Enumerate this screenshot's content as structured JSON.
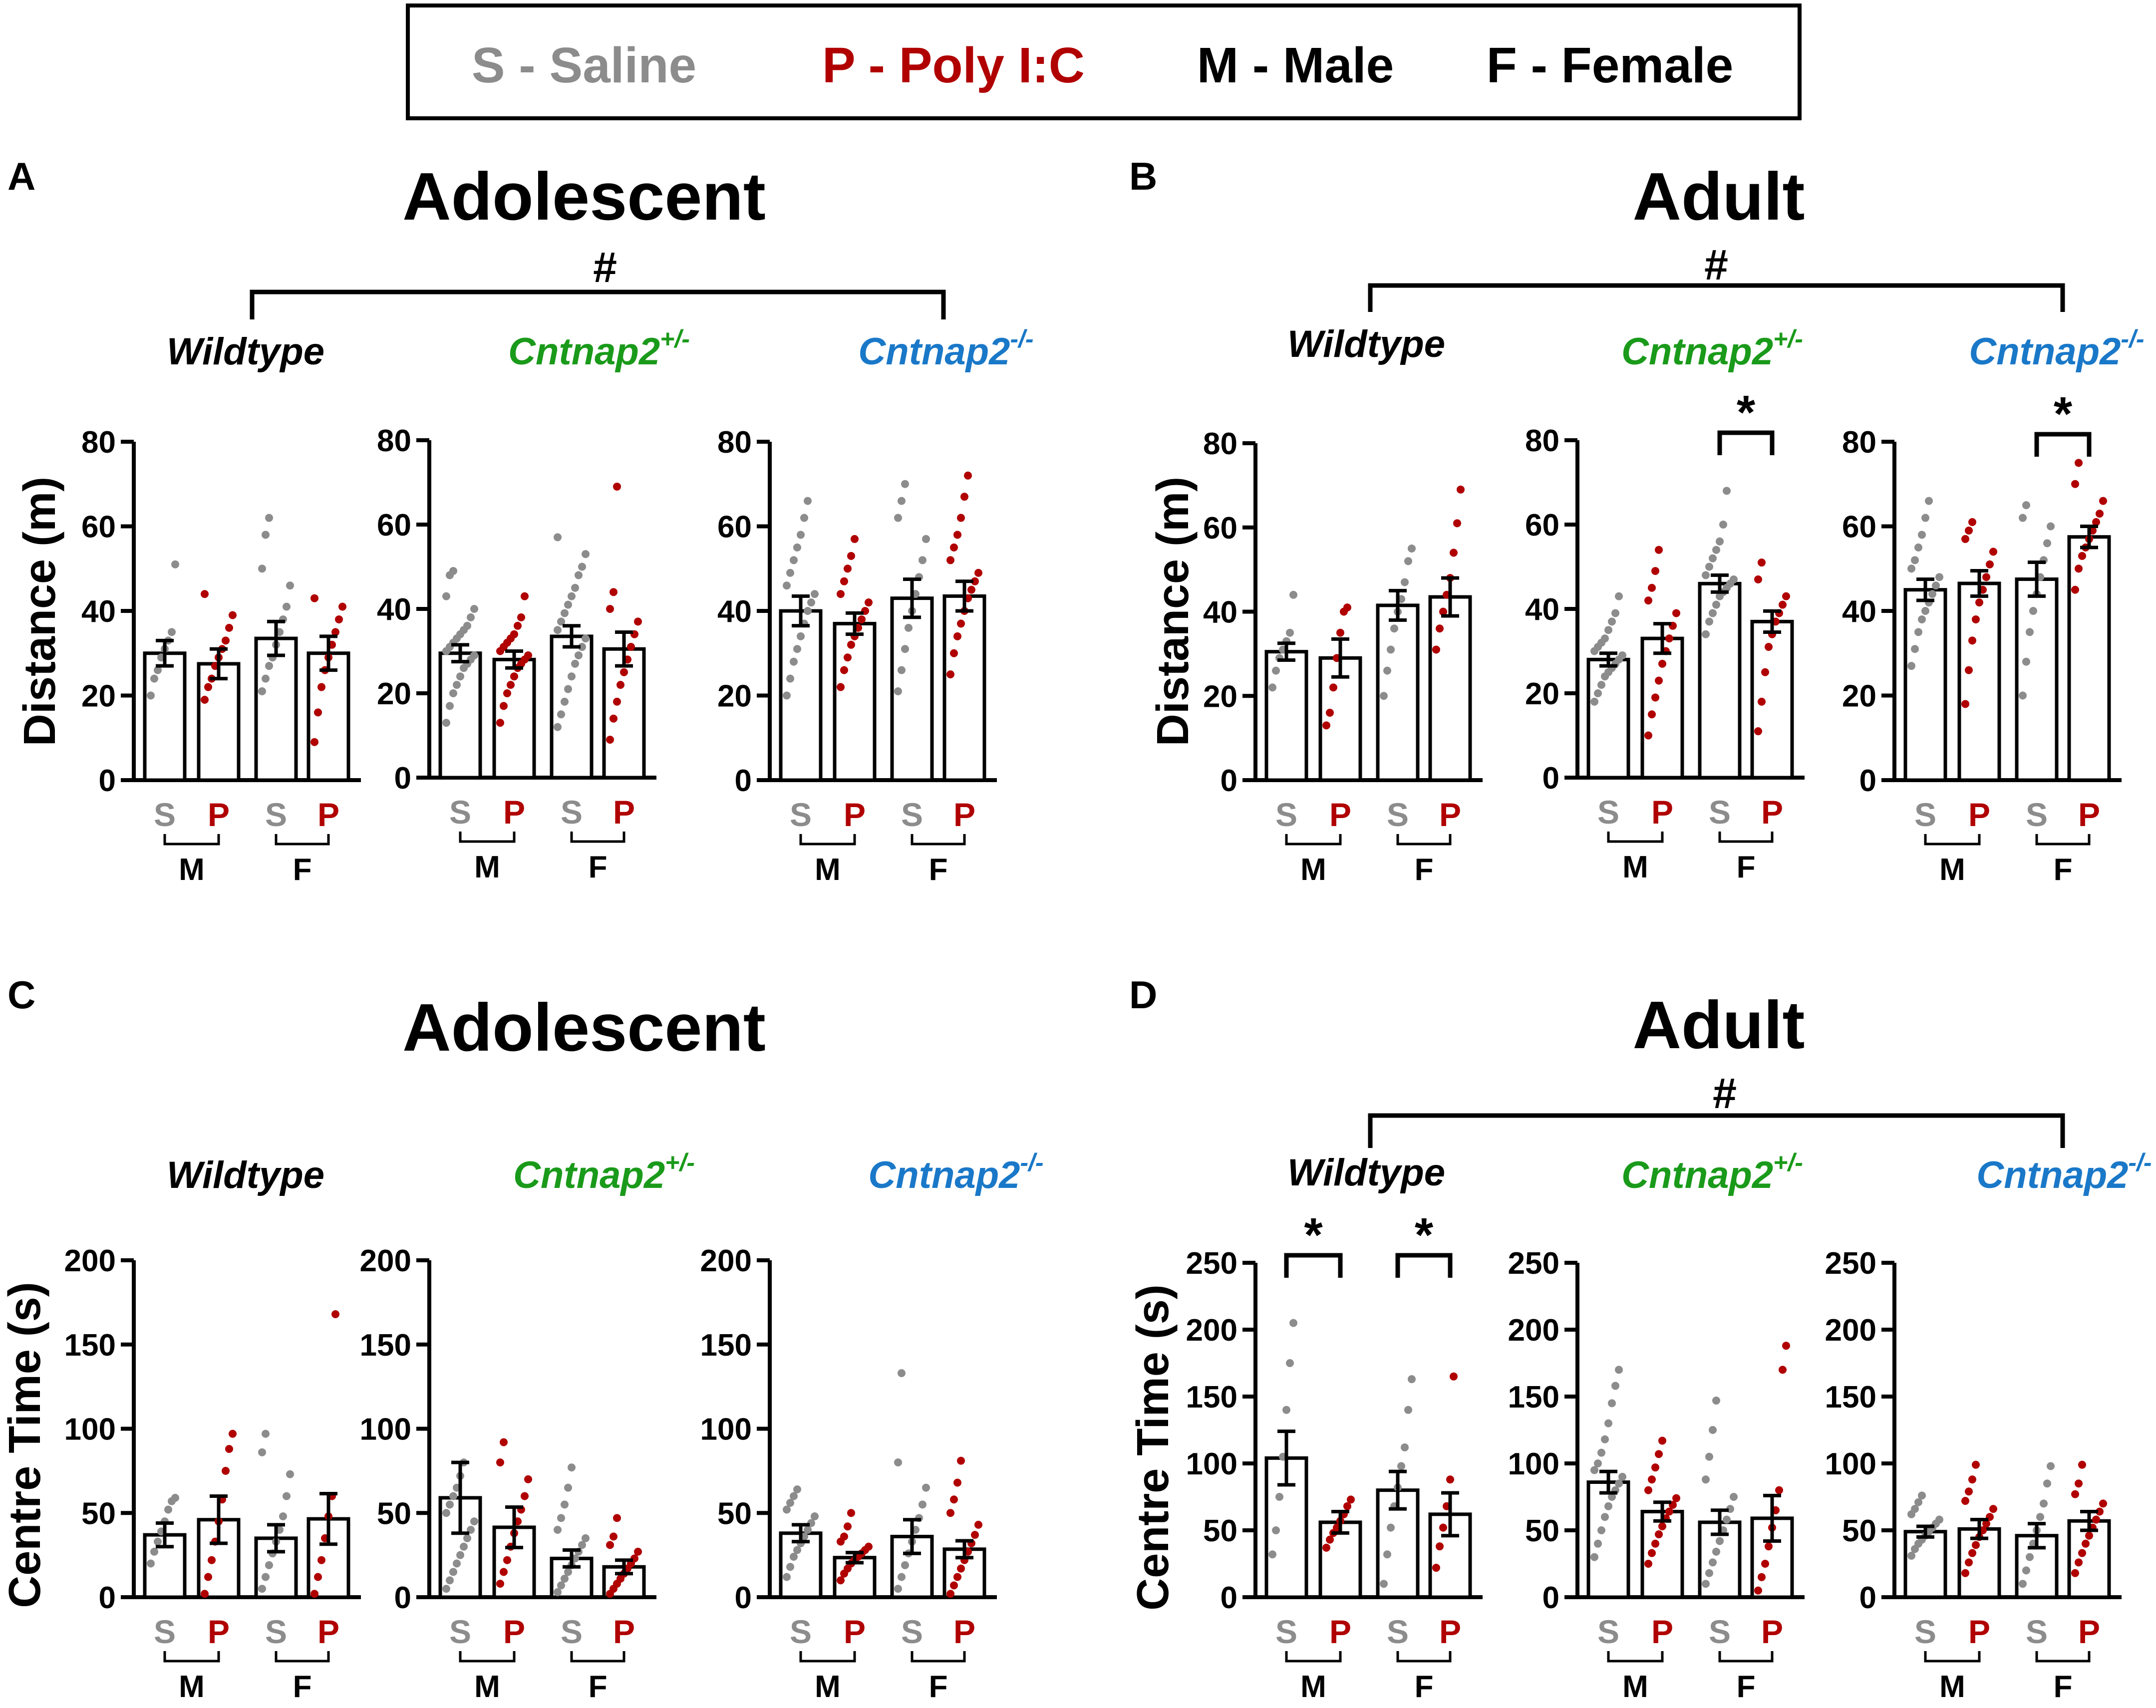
{
  "legend": {
    "items": [
      {
        "text": "S - Saline",
        "color": "#8c8c8c"
      },
      {
        "text": "P - Poly I:C",
        "color": "#b00000"
      },
      {
        "text": "M - Male",
        "color": "#000000"
      },
      {
        "text": "F - Female",
        "color": "#000000"
      }
    ]
  },
  "colors": {
    "saline": "#8c8c8c",
    "poly": "#b00000",
    "wildtype": "#000000",
    "het": "#1a9a1a",
    "ko": "#1a78c8"
  },
  "panels": [
    {
      "letter": "A",
      "title": "Adolescent",
      "hash": "#"
    },
    {
      "letter": "B",
      "title": "Adult",
      "hash": "#"
    },
    {
      "letter": "C",
      "title": "Adolescent",
      "hash": ""
    },
    {
      "letter": "D",
      "title": "Adult",
      "hash": "#"
    }
  ],
  "genotype_labels": {
    "wt": "Wildtype",
    "het_base": "Cntnap2",
    "het_sup": "+/-",
    "ko_base": "Cntnap2",
    "ko_sup": "-/-"
  },
  "axis_labels": {
    "A": "Distance (m)",
    "B": "Distance (m)",
    "C": "Centre Time (s)",
    "D": "Centre Time (s)"
  },
  "group_labels": {
    "S": "S",
    "P": "P",
    "M": "M",
    "F": "F"
  },
  "significance_mark": "*",
  "chart_data": [
    {
      "panel": "A",
      "genotype": "Wildtype",
      "type": "bar",
      "title": "Adolescent",
      "ylabel": "Distance (m)",
      "ylim": [
        0,
        80
      ],
      "yticks": [
        0,
        20,
        40,
        60,
        80
      ],
      "categories": [
        "M-S",
        "M-P",
        "F-S",
        "F-P"
      ],
      "values": [
        30,
        27.5,
        33.5,
        30
      ],
      "sem": [
        3,
        3.5,
        4,
        4
      ],
      "points": [
        [
          20,
          24,
          26,
          29,
          31,
          33,
          35,
          51
        ],
        [
          19,
          22,
          24,
          27,
          29,
          31,
          33,
          36,
          39,
          44
        ],
        [
          21,
          24,
          27,
          29,
          32,
          35,
          38,
          41,
          46,
          50,
          58,
          62
        ],
        [
          9,
          16,
          22,
          26,
          29,
          32,
          35,
          38,
          41,
          43
        ]
      ],
      "significance": []
    },
    {
      "panel": "A",
      "genotype": "Cntnap2+/-",
      "type": "bar",
      "title": "Adolescent",
      "ylabel": "Distance (m)",
      "ylim": [
        0,
        80
      ],
      "yticks": [
        0,
        20,
        40,
        60,
        80
      ],
      "categories": [
        "M-S",
        "M-P",
        "F-S",
        "F-P"
      ],
      "values": [
        29.5,
        28,
        33.5,
        30.5
      ],
      "sem": [
        2,
        2,
        2.5,
        4
      ],
      "points": [
        [
          13,
          17,
          20,
          22,
          24,
          26,
          27,
          28,
          29,
          30,
          31,
          32,
          33,
          34,
          35,
          36,
          38,
          40,
          43,
          48,
          49
        ],
        [
          13,
          17,
          20,
          22,
          24,
          26,
          27,
          28,
          29,
          30,
          31,
          32,
          33,
          34,
          36,
          38,
          43
        ],
        [
          12,
          15,
          18,
          21,
          24,
          27,
          29,
          31,
          33,
          35,
          37,
          39,
          41,
          43,
          45,
          48,
          50,
          53,
          57
        ],
        [
          9,
          14,
          18,
          22,
          25,
          28,
          31,
          34,
          37,
          40,
          44,
          69
        ]
      ],
      "significance": []
    },
    {
      "panel": "A",
      "genotype": "Cntnap2-/-",
      "type": "bar",
      "title": "Adolescent",
      "ylabel": "Distance (m)",
      "ylim": [
        0,
        80
      ],
      "yticks": [
        0,
        20,
        40,
        60,
        80
      ],
      "categories": [
        "M-S",
        "M-P",
        "F-S",
        "F-P"
      ],
      "values": [
        40,
        37,
        43,
        43.5
      ],
      "sem": [
        3.5,
        2.5,
        4.5,
        3.5
      ],
      "points": [
        [
          20,
          24,
          28,
          31,
          34,
          37,
          40,
          42,
          44,
          46,
          49,
          52,
          55,
          58,
          62,
          66
        ],
        [
          22,
          26,
          29,
          32,
          34,
          36,
          38,
          40,
          42,
          44,
          47,
          50,
          53,
          57
        ],
        [
          21,
          26,
          31,
          36,
          40,
          44,
          48,
          52,
          57,
          62,
          66,
          70
        ],
        [
          25,
          30,
          34,
          37,
          40,
          43,
          45,
          47,
          49,
          52,
          55,
          58,
          62,
          67,
          72
        ]
      ],
      "significance": []
    },
    {
      "panel": "B",
      "genotype": "Wildtype",
      "type": "bar",
      "title": "Adult",
      "ylabel": "Distance (m)",
      "ylim": [
        0,
        80
      ],
      "yticks": [
        0,
        20,
        40,
        60,
        80
      ],
      "categories": [
        "M-S",
        "M-P",
        "F-S",
        "F-P"
      ],
      "values": [
        30.5,
        29,
        41.5,
        43.5
      ],
      "sem": [
        2,
        4.5,
        3.5,
        4.5
      ],
      "points": [
        [
          22,
          26,
          29,
          31,
          33,
          35,
          44
        ],
        [
          13,
          16,
          22,
          29,
          35,
          40,
          41
        ],
        [
          20,
          26,
          31,
          36,
          40,
          43,
          47,
          52,
          55
        ],
        [
          31,
          36,
          40,
          44,
          48,
          54,
          61,
          69
        ]
      ],
      "significance": []
    },
    {
      "panel": "B",
      "genotype": "Cntnap2+/-",
      "type": "bar",
      "title": "Adult",
      "ylabel": "Distance (m)",
      "ylim": [
        0,
        80
      ],
      "yticks": [
        0,
        20,
        40,
        60,
        80
      ],
      "categories": [
        "M-S",
        "M-P",
        "F-S",
        "F-P"
      ],
      "values": [
        28,
        33,
        46,
        37
      ],
      "sem": [
        1.5,
        3.5,
        2,
        2.5
      ],
      "points": [
        [
          18,
          20,
          22,
          24,
          25,
          26,
          27,
          28,
          29,
          30,
          31,
          32,
          33,
          35,
          37,
          39,
          43
        ],
        [
          10,
          15,
          19,
          23,
          27,
          30,
          33,
          36,
          39,
          42,
          45,
          49,
          54
        ],
        [
          34,
          37,
          39,
          41,
          43,
          44,
          45,
          46,
          47,
          48,
          50,
          52,
          54,
          56,
          60,
          68
        ],
        [
          11,
          18,
          25,
          31,
          34,
          37,
          39,
          41,
          43,
          47,
          51
        ]
      ],
      "significance": [
        [
          2,
          3
        ]
      ]
    },
    {
      "panel": "B",
      "genotype": "Cntnap2-/-",
      "type": "bar",
      "title": "Adult",
      "ylabel": "Distance (m)",
      "ylim": [
        0,
        80
      ],
      "yticks": [
        0,
        20,
        40,
        60,
        80
      ],
      "categories": [
        "M-S",
        "M-P",
        "F-S",
        "F-P"
      ],
      "values": [
        45,
        46.5,
        47.5,
        57.5
      ],
      "sem": [
        2.5,
        3,
        4,
        2.5
      ],
      "points": [
        [
          27,
          31,
          35,
          38,
          40,
          42,
          44,
          46,
          48,
          50,
          52,
          55,
          58,
          62,
          66
        ],
        [
          18,
          26,
          33,
          38,
          42,
          45,
          48,
          51,
          54,
          57,
          59,
          61
        ],
        [
          20,
          28,
          35,
          40,
          44,
          48,
          52,
          56,
          60,
          62,
          65
        ],
        [
          45,
          50,
          53,
          55,
          57,
          59,
          61,
          63,
          66,
          70,
          75
        ]
      ],
      "significance": [
        [
          2,
          3
        ]
      ]
    },
    {
      "panel": "C",
      "genotype": "Wildtype",
      "type": "bar",
      "title": "Adolescent",
      "ylabel": "Centre Time (s)",
      "ylim": [
        0,
        200
      ],
      "yticks": [
        0,
        50,
        100,
        150,
        200
      ],
      "categories": [
        "M-S",
        "M-P",
        "F-S",
        "F-P"
      ],
      "values": [
        37,
        46,
        35,
        46.5
      ],
      "sem": [
        7,
        14,
        8,
        15
      ],
      "points": [
        [
          20,
          27,
          33,
          39,
          45,
          52,
          57,
          59
        ],
        [
          2,
          12,
          22,
          33,
          45,
          58,
          75,
          88,
          97
        ],
        [
          5,
          12,
          19,
          26,
          33,
          40,
          48,
          60,
          73,
          86,
          97
        ],
        [
          2,
          12,
          22,
          35,
          48,
          60,
          168
        ]
      ],
      "significance": []
    },
    {
      "panel": "C",
      "genotype": "Cntnap2+/-",
      "type": "bar",
      "title": "Adolescent",
      "ylabel": "Centre Time (s)",
      "ylim": [
        0,
        200
      ],
      "yticks": [
        0,
        50,
        100,
        150,
        200
      ],
      "categories": [
        "M-S",
        "M-P",
        "F-S",
        "F-P"
      ],
      "values": [
        59,
        41.5,
        23,
        18
      ],
      "sem": [
        21,
        12,
        5,
        4
      ],
      "points": [
        [
          5,
          10,
          15,
          20,
          25,
          30,
          35,
          40,
          45,
          50,
          55,
          60,
          65,
          72,
          80
        ],
        [
          8,
          15,
          22,
          30,
          38,
          45,
          52,
          60,
          70,
          80,
          92
        ],
        [
          3,
          7,
          11,
          15,
          19,
          23,
          27,
          31,
          35,
          40,
          47,
          55,
          65,
          77
        ],
        [
          2,
          5,
          8,
          11,
          14,
          17,
          20,
          23,
          27,
          31,
          36,
          47
        ]
      ],
      "significance": []
    },
    {
      "panel": "C",
      "genotype": "Cntnap2-/-",
      "type": "bar",
      "title": "Adolescent",
      "ylabel": "Centre Time (s)",
      "ylim": [
        0,
        200
      ],
      "yticks": [
        0,
        50,
        100,
        150,
        200
      ],
      "categories": [
        "M-S",
        "M-P",
        "F-S",
        "F-P"
      ],
      "values": [
        38,
        23.5,
        36,
        28.5
      ],
      "sem": [
        5,
        3,
        10,
        5
      ],
      "points": [
        [
          12,
          18,
          24,
          28,
          32,
          36,
          40,
          44,
          48,
          52,
          56,
          60,
          64
        ],
        [
          10,
          14,
          17,
          20,
          22,
          24,
          26,
          28,
          30,
          33,
          36,
          42,
          50
        ],
        [
          5,
          12,
          19,
          26,
          33,
          40,
          47,
          55,
          65,
          80,
          133
        ],
        [
          2,
          7,
          12,
          17,
          22,
          27,
          32,
          37,
          43,
          50,
          58,
          68,
          81
        ]
      ],
      "significance": []
    },
    {
      "panel": "D",
      "genotype": "Wildtype",
      "type": "bar",
      "title": "Adult",
      "ylabel": "Centre Time (s)",
      "ylim": [
        0,
        250
      ],
      "yticks": [
        0,
        50,
        100,
        150,
        200,
        250
      ],
      "categories": [
        "M-S",
        "M-P",
        "F-S",
        "F-P"
      ],
      "values": [
        104,
        56,
        80,
        62
      ],
      "sem": [
        20,
        8,
        14,
        16
      ],
      "points": [
        [
          32,
          50,
          75,
          105,
          140,
          175,
          205
        ],
        [
          37,
          43,
          48,
          52,
          57,
          62,
          68,
          73
        ],
        [
          10,
          32,
          52,
          68,
          82,
          98,
          112,
          140,
          163
        ],
        [
          22,
          38,
          52,
          68,
          88,
          165
        ]
      ],
      "significance": [
        [
          0,
          1
        ],
        [
          2,
          3
        ]
      ]
    },
    {
      "panel": "D",
      "genotype": "Cntnap2+/-",
      "type": "bar",
      "title": "Adult",
      "ylabel": "Centre Time (s)",
      "ylim": [
        0,
        250
      ],
      "yticks": [
        0,
        50,
        100,
        150,
        200,
        250
      ],
      "categories": [
        "M-S",
        "M-P",
        "F-S",
        "F-P"
      ],
      "values": [
        86,
        64,
        56,
        59
      ],
      "sem": [
        8,
        7,
        9,
        17
      ],
      "points": [
        [
          30,
          40,
          50,
          60,
          68,
          75,
          80,
          85,
          90,
          95,
          100,
          108,
          118,
          130,
          145,
          158,
          170
        ],
        [
          25,
          33,
          40,
          47,
          53,
          59,
          64,
          69,
          74,
          80,
          88,
          97,
          107,
          117
        ],
        [
          10,
          18,
          26,
          34,
          42,
          50,
          58,
          66,
          75,
          88,
          105,
          125,
          147
        ],
        [
          5,
          15,
          25,
          38,
          52,
          65,
          80,
          170,
          188
        ]
      ],
      "significance": []
    },
    {
      "panel": "D",
      "genotype": "Cntnap2-/-",
      "type": "bar",
      "title": "Adult",
      "ylabel": "Centre Time (s)",
      "ylim": [
        0,
        250
      ],
      "yticks": [
        0,
        50,
        100,
        150,
        200,
        250
      ],
      "categories": [
        "M-S",
        "M-P",
        "F-S",
        "F-P"
      ],
      "values": [
        49,
        51,
        46,
        57
      ],
      "sem": [
        4,
        7,
        9,
        7
      ],
      "points": [
        [
          31,
          36,
          40,
          43,
          46,
          49,
          52,
          55,
          58,
          62,
          66,
          71,
          76
        ],
        [
          18,
          26,
          33,
          39,
          45,
          50,
          55,
          60,
          66,
          72,
          79,
          88,
          99
        ],
        [
          10,
          20,
          30,
          40,
          50,
          60,
          70,
          85,
          98
        ],
        [
          18,
          26,
          33,
          40,
          46,
          52,
          58,
          64,
          70,
          77,
          85,
          99
        ]
      ],
      "significance": []
    }
  ]
}
